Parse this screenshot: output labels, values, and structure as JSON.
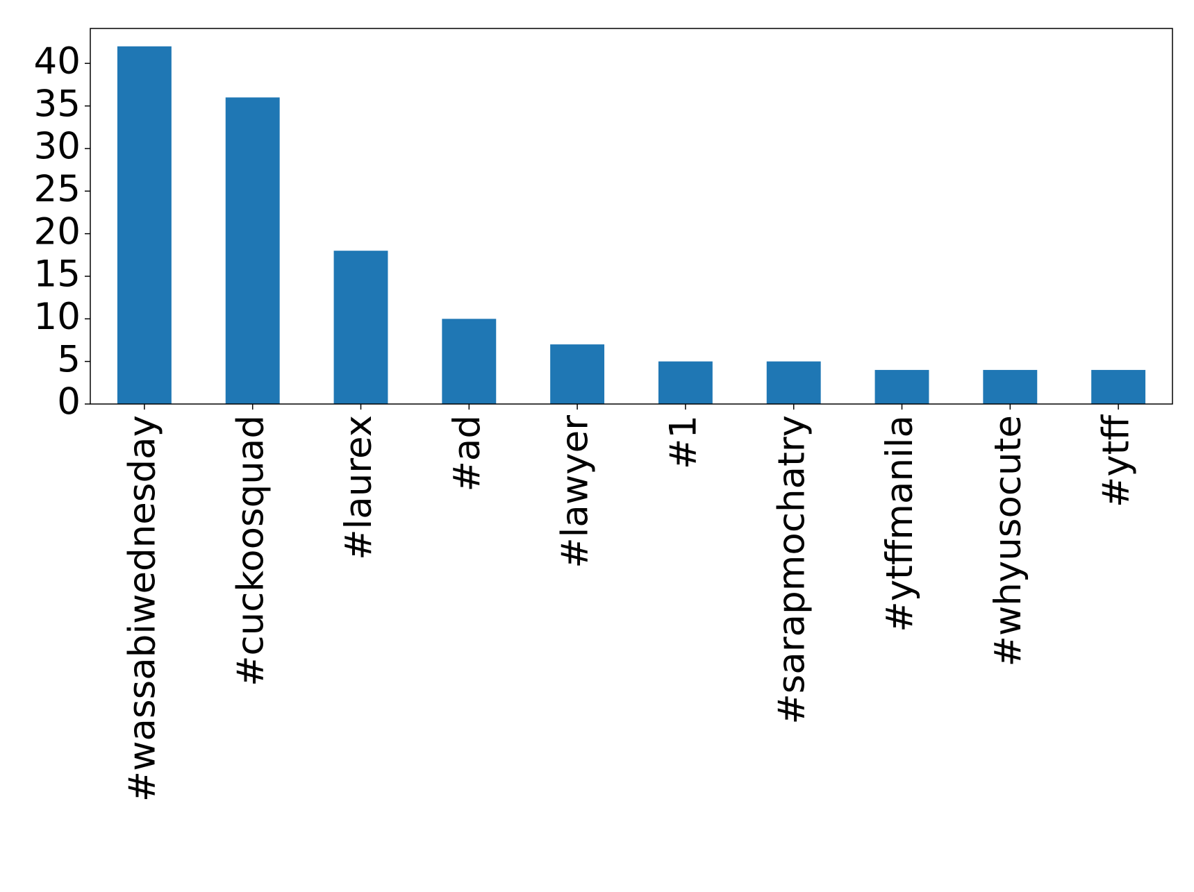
{
  "chart_data": {
    "type": "bar",
    "categories": [
      "#wassabiwednesday",
      "#cuckoosquad",
      "#laurex",
      "#ad",
      "#lawyer",
      "#1",
      "#sarapmochatry",
      "#ytffmanila",
      "#whyusocute",
      "#ytff"
    ],
    "values": [
      42,
      36,
      18,
      10,
      7,
      5,
      5,
      4,
      4,
      4
    ],
    "color": "#1f77b4",
    "ylim": [
      0,
      44.1
    ],
    "yticks": [
      0,
      5,
      10,
      15,
      20,
      25,
      30,
      35,
      40
    ],
    "grid": false
  }
}
